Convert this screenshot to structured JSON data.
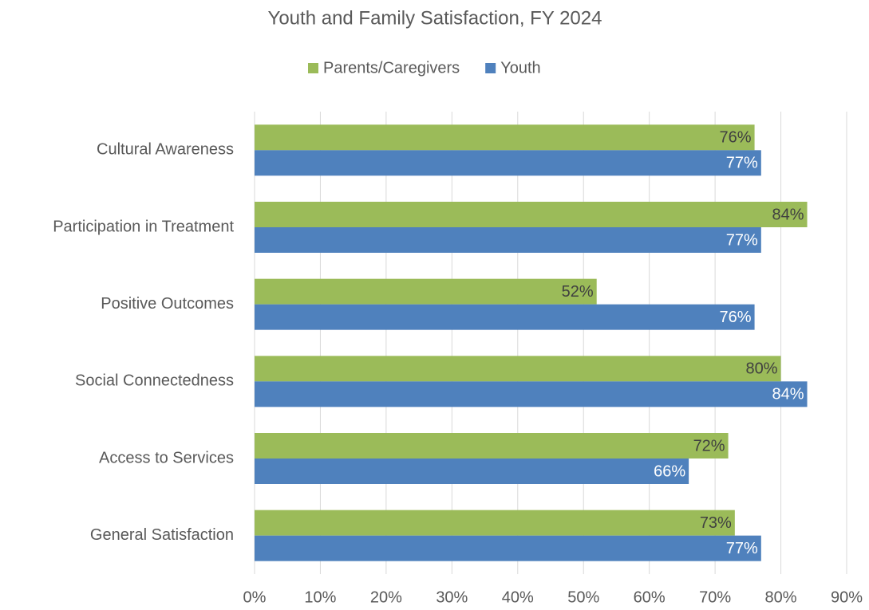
{
  "chart_data": {
    "type": "hbar",
    "title": "Youth and Family Satisfaction, FY 2024",
    "categories": [
      "Cultural Awareness",
      "Participation in Treatment",
      "Positive Outcomes",
      "Social Connectedness",
      "Access to Services",
      "General Satisfaction"
    ],
    "series": [
      {
        "name": "Parents/Caregivers",
        "color": "#9bbb59",
        "values": [
          76,
          84,
          52,
          80,
          72,
          73
        ],
        "value_labels": [
          "76%",
          "84%",
          "52%",
          "80%",
          "72%",
          "73%"
        ]
      },
      {
        "name": "Youth",
        "color": "#4f81bd",
        "values": [
          77,
          77,
          76,
          84,
          66,
          77
        ],
        "value_labels": [
          "77%",
          "77%",
          "76%",
          "84%",
          "66%",
          "77%"
        ]
      }
    ],
    "xlim": [
      0,
      90
    ],
    "xticks": [
      {
        "value": 0,
        "label": "0%"
      },
      {
        "value": 10,
        "label": "10%"
      },
      {
        "value": 20,
        "label": "20%"
      },
      {
        "value": 30,
        "label": "30%"
      },
      {
        "value": 40,
        "label": "40%"
      },
      {
        "value": 50,
        "label": "50%"
      },
      {
        "value": 60,
        "label": "60%"
      },
      {
        "value": 70,
        "label": "70%"
      },
      {
        "value": 80,
        "label": "80%"
      },
      {
        "value": 90,
        "label": "90%"
      }
    ],
    "grid": true,
    "legend": "top"
  }
}
